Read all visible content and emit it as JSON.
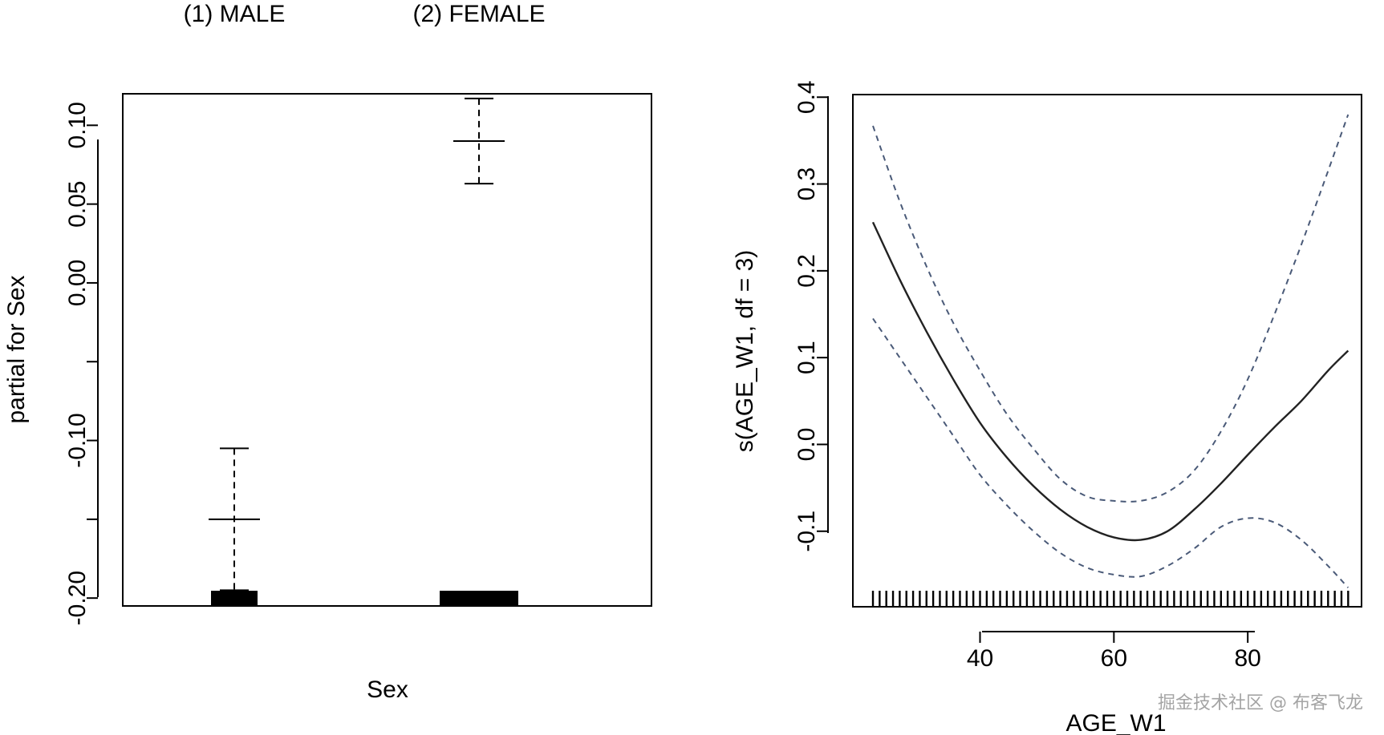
{
  "chart_data": [
    {
      "type": "errorbar",
      "title": "",
      "xlabel": "Sex",
      "ylabel": "partial for Sex",
      "categories": [
        "(1) MALE",
        "(2) FEMALE"
      ],
      "values": [
        -0.15,
        0.09
      ],
      "upper": [
        -0.105,
        0.117
      ],
      "lower": [
        -0.195,
        0.063
      ],
      "rug_counts_relative": [
        0.55,
        0.9
      ],
      "ylim": [
        -0.205,
        0.12
      ],
      "yticks": [
        -0.2,
        -0.15,
        -0.1,
        -0.05,
        0.0,
        0.05,
        0.1
      ],
      "ytick_labels": [
        "-0.20",
        "",
        "-0.10",
        "",
        "0.00",
        "0.05",
        "0.10"
      ],
      "grid": false
    },
    {
      "type": "line",
      "title": "",
      "xlabel": "AGE_W1",
      "ylabel": "s(AGE_W1, df = 3)",
      "x": [
        24,
        28,
        32,
        36,
        40,
        44,
        48,
        52,
        56,
        60,
        64,
        68,
        72,
        76,
        80,
        84,
        88,
        92,
        95
      ],
      "series": [
        {
          "name": "fit",
          "style": "solid",
          "color": "#222222",
          "values": [
            0.256,
            0.19,
            0.13,
            0.075,
            0.025,
            -0.015,
            -0.048,
            -0.075,
            -0.095,
            -0.107,
            -0.11,
            -0.1,
            -0.075,
            -0.045,
            -0.012,
            0.02,
            0.05,
            0.085,
            0.108
          ]
        },
        {
          "name": "upper band",
          "style": "dashed",
          "color": "#4a5a78",
          "values": [
            0.367,
            0.28,
            0.205,
            0.14,
            0.085,
            0.035,
            -0.005,
            -0.04,
            -0.06,
            -0.065,
            -0.065,
            -0.055,
            -0.03,
            0.015,
            0.075,
            0.15,
            0.23,
            0.315,
            0.38
          ]
        },
        {
          "name": "lower band",
          "style": "dashed",
          "color": "#4a5a78",
          "values": [
            0.145,
            0.1,
            0.055,
            0.01,
            -0.035,
            -0.07,
            -0.1,
            -0.125,
            -0.142,
            -0.15,
            -0.152,
            -0.14,
            -0.12,
            -0.095,
            -0.085,
            -0.09,
            -0.11,
            -0.14,
            -0.165
          ]
        }
      ],
      "rug": [
        24,
        25,
        26,
        27,
        28,
        29,
        30,
        31,
        32,
        33,
        34,
        35,
        36,
        37,
        38,
        39,
        40,
        41,
        42,
        43,
        44,
        45,
        46,
        47,
        48,
        49,
        50,
        51,
        52,
        53,
        54,
        55,
        56,
        57,
        58,
        59,
        60,
        61,
        62,
        63,
        64,
        65,
        66,
        67,
        68,
        69,
        70,
        71,
        72,
        73,
        74,
        75,
        76,
        77,
        78,
        79,
        80,
        81,
        82,
        83,
        84,
        85,
        86,
        87,
        88,
        89,
        90,
        91,
        92,
        93,
        94,
        95
      ],
      "xlim": [
        21,
        97
      ],
      "ylim": [
        -0.187,
        0.403
      ],
      "xticks": [
        40,
        60,
        80
      ],
      "xtick_labels": [
        "40",
        "60",
        "80"
      ],
      "yticks": [
        -0.1,
        0.0,
        0.1,
        0.2,
        0.3,
        0.4
      ],
      "ytick_labels": [
        "-0.1",
        "0.0",
        "0.1",
        "0.2",
        "0.3",
        "0.4"
      ],
      "grid": false
    }
  ],
  "watermark": "掘金技术社区 @ 布客飞龙"
}
